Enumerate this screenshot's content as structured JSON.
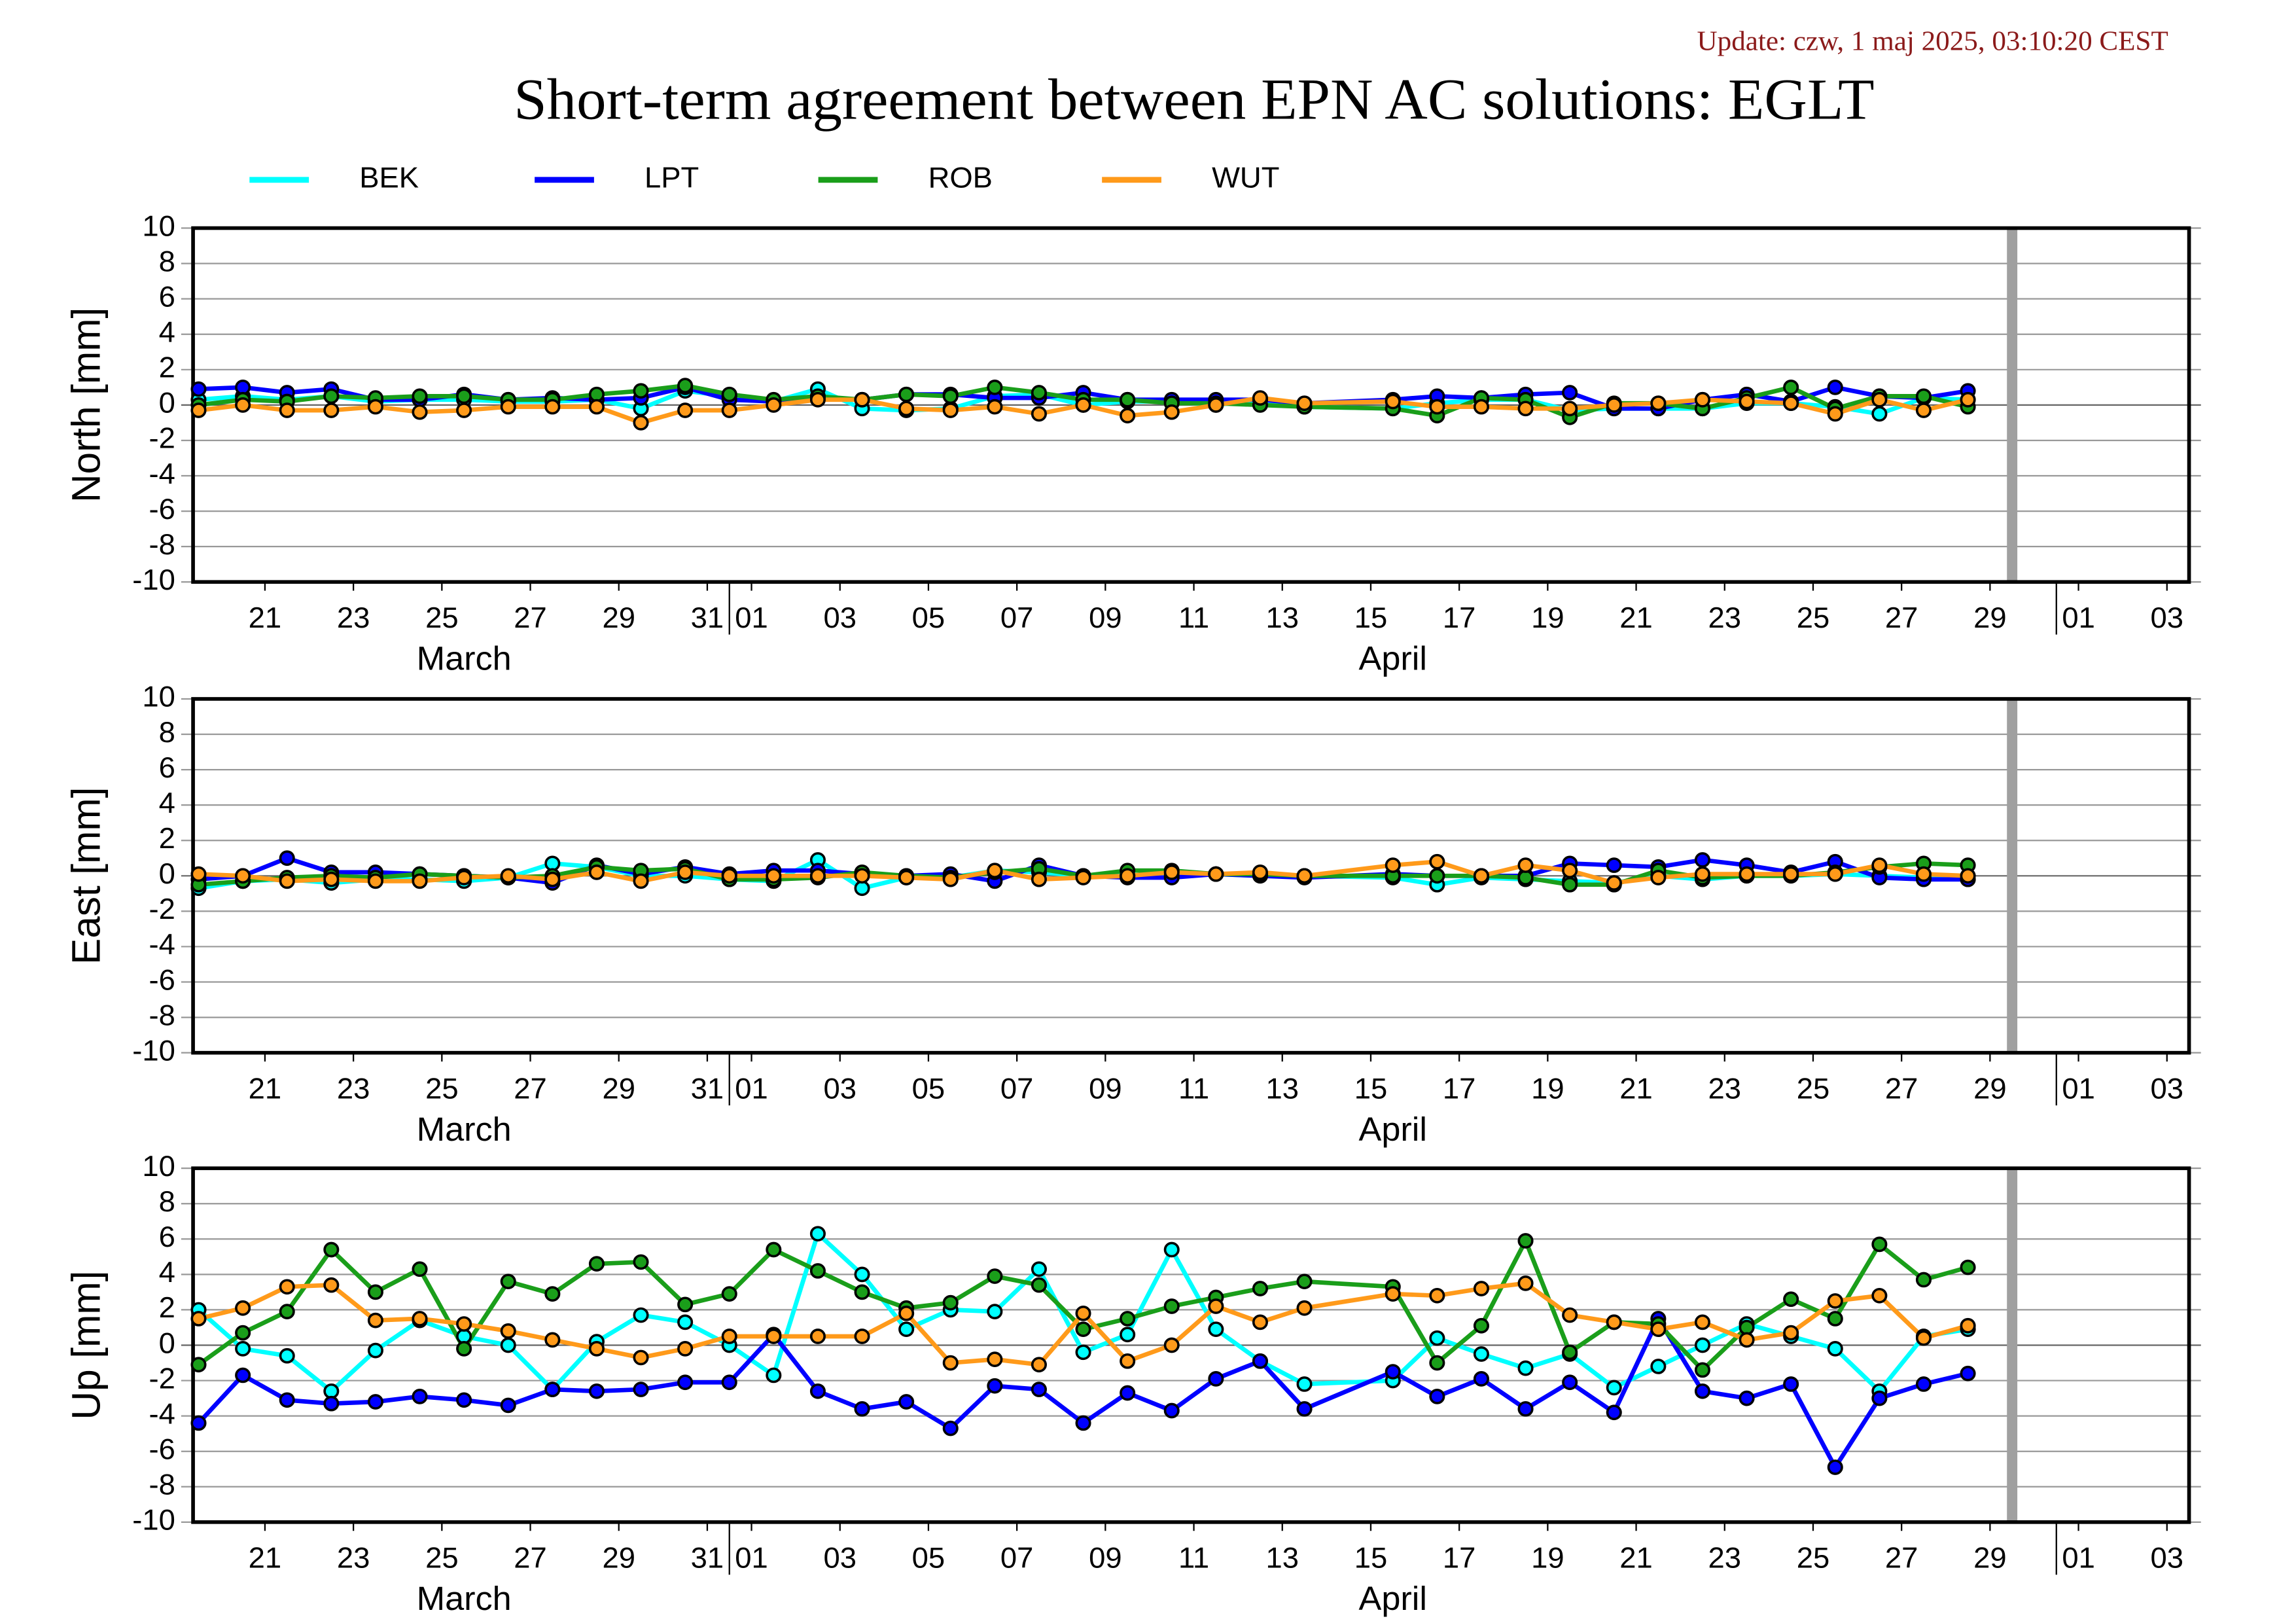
{
  "title": "Short-term agreement between EPN AC solutions: EGLT",
  "update": "Update: czw, 1 maj 2025, 03:10:20 CEST",
  "chart_data": [
    {
      "type": "line",
      "ylabel": "North [mm]",
      "ylim": [
        -10,
        10
      ],
      "yticks": [
        10,
        8,
        6,
        4,
        2,
        0,
        -2,
        -4,
        -6,
        -8,
        -10
      ],
      "grid": true,
      "xlim": [
        "03-19T21",
        "05-04T00"
      ],
      "shade_x": "04-30",
      "shade_color": "#a0a0a0",
      "x": [
        "03-20",
        "03-21",
        "03-22",
        "03-23",
        "03-24",
        "03-25",
        "03-26",
        "03-27",
        "03-28",
        "03-29",
        "03-30",
        "03-31",
        "04-01",
        "04-02",
        "04-03",
        "04-04",
        "04-05",
        "04-06",
        "04-07",
        "04-08",
        "04-09",
        "04-10",
        "04-11",
        "04-12",
        "04-13",
        "04-14",
        "04-16",
        "04-17",
        "04-18",
        "04-19",
        "04-20",
        "04-21",
        "04-22",
        "04-23",
        "04-24",
        "04-25",
        "04-26",
        "04-27",
        "04-28",
        "04-29"
      ],
      "xticks": [
        {
          "value": "03-21T12",
          "label": "21"
        },
        {
          "value": "03-23T12",
          "label": "23"
        },
        {
          "value": "03-25T12",
          "label": "25"
        },
        {
          "value": "03-27T12",
          "label": "27"
        },
        {
          "value": "03-29T12",
          "label": "29"
        },
        {
          "value": "03-31T12",
          "label": "31"
        },
        {
          "value": "04-01T12",
          "label": "01"
        },
        {
          "value": "04-03T12",
          "label": "03"
        },
        {
          "value": "04-05T12",
          "label": "05"
        },
        {
          "value": "04-07T12",
          "label": "07"
        },
        {
          "value": "04-09T12",
          "label": "09"
        },
        {
          "value": "04-11T12",
          "label": "11"
        },
        {
          "value": "04-13T12",
          "label": "13"
        },
        {
          "value": "04-15T12",
          "label": "15"
        },
        {
          "value": "04-17T12",
          "label": "17"
        },
        {
          "value": "04-19T12",
          "label": "19"
        },
        {
          "value": "04-21T12",
          "label": "21"
        },
        {
          "value": "04-23T12",
          "label": "23"
        },
        {
          "value": "04-25T12",
          "label": "25"
        },
        {
          "value": "04-27T12",
          "label": "27"
        },
        {
          "value": "04-29T12",
          "label": "29"
        },
        {
          "value": "05-01T12",
          "label": "01"
        },
        {
          "value": "05-03T12",
          "label": "03"
        }
      ],
      "month_ticks": [
        "04-01",
        "05-01"
      ],
      "month_labels": [
        {
          "value": "03-26",
          "label": "March"
        },
        {
          "value": "04-16",
          "label": "April"
        }
      ],
      "series": [
        {
          "name": "BEK",
          "color": "#00ffff",
          "values": [
            0.3,
            0.5,
            0.3,
            0.5,
            0.2,
            0.3,
            0.3,
            0.2,
            0.2,
            0.3,
            -0.2,
            0.8,
            0.5,
            0.2,
            0.9,
            -0.2,
            -0.3,
            -0.2,
            0.5,
            0.6,
            0,
            0.2,
            0.2,
            0,
            0.3,
            -0.1,
            -0.2,
            0.1,
            0.3,
            0.3,
            -0.3,
            -0.2,
            -0.2,
            -0.2,
            0.1,
            0.1,
            -0.1,
            -0.5,
            0.4,
            0.3
          ]
        },
        {
          "name": "LPT",
          "color": "#0000ff",
          "values": [
            0.9,
            1.0,
            0.7,
            0.9,
            0.3,
            0.3,
            0.6,
            0.3,
            0.4,
            0.3,
            0.4,
            1.0,
            0.3,
            0.2,
            0.4,
            0.3,
            0.6,
            0.6,
            0.4,
            0.4,
            0.7,
            0.3,
            0.3,
            0.3,
            0.3,
            0.1,
            0.3,
            0.5,
            0.4,
            0.6,
            0.7,
            -0.2,
            -0.2,
            0.3,
            0.6,
            0.2,
            1.0,
            0.5,
            0.4,
            0.8
          ]
        },
        {
          "name": "ROB",
          "color": "#1a9e1a",
          "values": [
            0,
            0.3,
            0.2,
            0.5,
            0.4,
            0.5,
            0.5,
            0.3,
            0.3,
            0.6,
            0.8,
            1.1,
            0.6,
            0.3,
            0.5,
            0.3,
            0.6,
            0.5,
            1.0,
            0.7,
            0.3,
            0.3,
            0.1,
            0.1,
            0,
            -0.1,
            -0.2,
            -0.6,
            0.4,
            0.3,
            -0.7,
            0.1,
            0.1,
            -0.2,
            0.4,
            1.0,
            -0.2,
            0.5,
            0.5,
            -0.1
          ]
        },
        {
          "name": "WUT",
          "color": "#ff9a1a",
          "values": [
            -0.3,
            0,
            -0.3,
            -0.3,
            -0.1,
            -0.4,
            -0.3,
            -0.1,
            -0.1,
            -0.1,
            -1.0,
            -0.3,
            -0.3,
            0,
            0.3,
            0.3,
            -0.2,
            -0.3,
            -0.1,
            -0.5,
            0,
            -0.6,
            -0.4,
            0,
            0.4,
            0.1,
            0.2,
            -0.1,
            -0.1,
            -0.2,
            -0.2,
            0,
            0.1,
            0.3,
            0.2,
            0.1,
            -0.5,
            0.3,
            -0.3,
            0.3
          ]
        }
      ]
    },
    {
      "type": "line",
      "ylabel": "East [mm]",
      "ylim": [
        -10,
        10
      ],
      "yticks": [
        10,
        8,
        6,
        4,
        2,
        0,
        -2,
        -4,
        -6,
        -8,
        -10
      ],
      "grid": true,
      "xlim": [
        "03-19T21",
        "05-04T00"
      ],
      "shade_x": "04-30",
      "shade_color": "#a0a0a0",
      "x": [
        "03-20",
        "03-21",
        "03-22",
        "03-23",
        "03-24",
        "03-25",
        "03-26",
        "03-27",
        "03-28",
        "03-29",
        "03-30",
        "03-31",
        "04-01",
        "04-02",
        "04-03",
        "04-04",
        "04-05",
        "04-06",
        "04-07",
        "04-08",
        "04-09",
        "04-10",
        "04-11",
        "04-12",
        "04-13",
        "04-14",
        "04-16",
        "04-17",
        "04-18",
        "04-19",
        "04-20",
        "04-21",
        "04-22",
        "04-23",
        "04-24",
        "04-25",
        "04-26",
        "04-27",
        "04-28",
        "04-29"
      ],
      "xticks": [
        {
          "value": "03-21T12",
          "label": "21"
        },
        {
          "value": "03-23T12",
          "label": "23"
        },
        {
          "value": "03-25T12",
          "label": "25"
        },
        {
          "value": "03-27T12",
          "label": "27"
        },
        {
          "value": "03-29T12",
          "label": "29"
        },
        {
          "value": "03-31T12",
          "label": "31"
        },
        {
          "value": "04-01T12",
          "label": "01"
        },
        {
          "value": "04-03T12",
          "label": "03"
        },
        {
          "value": "04-05T12",
          "label": "05"
        },
        {
          "value": "04-07T12",
          "label": "07"
        },
        {
          "value": "04-09T12",
          "label": "09"
        },
        {
          "value": "04-11T12",
          "label": "11"
        },
        {
          "value": "04-13T12",
          "label": "13"
        },
        {
          "value": "04-15T12",
          "label": "15"
        },
        {
          "value": "04-17T12",
          "label": "17"
        },
        {
          "value": "04-19T12",
          "label": "19"
        },
        {
          "value": "04-21T12",
          "label": "21"
        },
        {
          "value": "04-23T12",
          "label": "23"
        },
        {
          "value": "04-25T12",
          "label": "25"
        },
        {
          "value": "04-27T12",
          "label": "27"
        },
        {
          "value": "04-29T12",
          "label": "29"
        },
        {
          "value": "05-01T12",
          "label": "01"
        },
        {
          "value": "05-03T12",
          "label": "03"
        }
      ],
      "month_ticks": [
        "04-01",
        "05-01"
      ],
      "month_labels": [
        {
          "value": "03-26",
          "label": "March"
        },
        {
          "value": "04-16",
          "label": "April"
        }
      ],
      "series": [
        {
          "name": "BEK",
          "color": "#00ffff",
          "values": [
            -0.7,
            -0.3,
            -0.2,
            -0.4,
            -0.2,
            -0.2,
            -0.3,
            -0.1,
            0.7,
            0.5,
            0,
            0,
            -0.2,
            -0.3,
            0.9,
            -0.7,
            -0.1,
            -0.1,
            0.3,
            0.2,
            0,
            0,
            0,
            0.1,
            0,
            0,
            -0.1,
            -0.5,
            -0.1,
            -0.2,
            -0.3,
            -0.4,
            0,
            -0.2,
            0,
            0,
            0.1,
            0,
            -0.1,
            -0.2
          ]
        },
        {
          "name": "LPT",
          "color": "#0000ff",
          "values": [
            -0.2,
            0,
            1.0,
            0.2,
            0.2,
            0.1,
            0,
            -0.1,
            -0.4,
            0.6,
            0.1,
            0.5,
            0.1,
            0.3,
            0.3,
            0.1,
            0,
            0.1,
            -0.3,
            0.6,
            0,
            -0.1,
            -0.1,
            0.1,
            0,
            -0.1,
            0.1,
            0,
            0,
            0,
            0.7,
            0.6,
            0.5,
            0.9,
            0.6,
            0.2,
            0.8,
            -0.1,
            -0.2,
            -0.2
          ]
        },
        {
          "name": "ROB",
          "color": "#1a9e1a",
          "values": [
            -0.5,
            -0.3,
            -0.1,
            0,
            -0.1,
            0.1,
            0,
            -0.1,
            0,
            0.5,
            0.3,
            0.4,
            -0.2,
            -0.2,
            -0.1,
            0.2,
            0,
            -0.1,
            0.2,
            0.4,
            0,
            0.3,
            0.3,
            0.1,
            0.1,
            0,
            0,
            0,
            0,
            -0.1,
            -0.5,
            -0.5,
            0.3,
            -0.1,
            0,
            0,
            0.2,
            0.5,
            0.7,
            0.6
          ]
        },
        {
          "name": "WUT",
          "color": "#ff9a1a",
          "values": [
            0.1,
            0,
            -0.3,
            -0.2,
            -0.3,
            -0.3,
            -0.1,
            0,
            -0.2,
            0.2,
            -0.3,
            0.2,
            0,
            0,
            0,
            0,
            -0.1,
            -0.2,
            0.3,
            -0.2,
            -0.1,
            0,
            0.2,
            0.1,
            0.2,
            0,
            0.6,
            0.8,
            0,
            0.6,
            0.3,
            -0.4,
            -0.1,
            0.1,
            0.1,
            0.1,
            0.1,
            0.6,
            0.1,
            0
          ]
        }
      ]
    },
    {
      "type": "line",
      "ylabel": "Up [mm]",
      "ylim": [
        -10,
        10
      ],
      "yticks": [
        10,
        8,
        6,
        4,
        2,
        0,
        -2,
        -4,
        -6,
        -8,
        -10
      ],
      "grid": true,
      "xlim": [
        "03-19T21",
        "05-04T00"
      ],
      "shade_x": "04-30",
      "shade_color": "#a0a0a0",
      "x": [
        "03-20",
        "03-21",
        "03-22",
        "03-23",
        "03-24",
        "03-25",
        "03-26",
        "03-27",
        "03-28",
        "03-29",
        "03-30",
        "03-31",
        "04-01",
        "04-02",
        "04-03",
        "04-04",
        "04-05",
        "04-06",
        "04-07",
        "04-08",
        "04-09",
        "04-10",
        "04-11",
        "04-12",
        "04-13",
        "04-14",
        "04-16",
        "04-17",
        "04-18",
        "04-19",
        "04-20",
        "04-21",
        "04-22",
        "04-23",
        "04-24",
        "04-25",
        "04-26",
        "04-27",
        "04-28",
        "04-29"
      ],
      "xticks": [
        {
          "value": "03-21T12",
          "label": "21"
        },
        {
          "value": "03-23T12",
          "label": "23"
        },
        {
          "value": "03-25T12",
          "label": "25"
        },
        {
          "value": "03-27T12",
          "label": "27"
        },
        {
          "value": "03-29T12",
          "label": "29"
        },
        {
          "value": "03-31T12",
          "label": "31"
        },
        {
          "value": "04-01T12",
          "label": "01"
        },
        {
          "value": "04-03T12",
          "label": "03"
        },
        {
          "value": "04-05T12",
          "label": "05"
        },
        {
          "value": "04-07T12",
          "label": "07"
        },
        {
          "value": "04-09T12",
          "label": "09"
        },
        {
          "value": "04-11T12",
          "label": "11"
        },
        {
          "value": "04-13T12",
          "label": "13"
        },
        {
          "value": "04-15T12",
          "label": "15"
        },
        {
          "value": "04-17T12",
          "label": "17"
        },
        {
          "value": "04-19T12",
          "label": "19"
        },
        {
          "value": "04-21T12",
          "label": "21"
        },
        {
          "value": "04-23T12",
          "label": "23"
        },
        {
          "value": "04-25T12",
          "label": "25"
        },
        {
          "value": "04-27T12",
          "label": "27"
        },
        {
          "value": "04-29T12",
          "label": "29"
        },
        {
          "value": "05-01T12",
          "label": "01"
        },
        {
          "value": "05-03T12",
          "label": "03"
        }
      ],
      "month_ticks": [
        "04-01",
        "05-01"
      ],
      "month_labels": [
        {
          "value": "03-26",
          "label": "March"
        },
        {
          "value": "04-16",
          "label": "April"
        }
      ],
      "series": [
        {
          "name": "BEK",
          "color": "#00ffff",
          "values": [
            2.0,
            -0.2,
            -0.6,
            -2.6,
            -0.3,
            1.4,
            0.5,
            0,
            -2.5,
            0.2,
            1.7,
            1.3,
            0,
            -1.7,
            6.3,
            4.0,
            0.9,
            2.0,
            1.9,
            4.3,
            -0.4,
            0.6,
            5.4,
            0.9,
            -0.9,
            -2.2,
            -2.0,
            0.4,
            -0.5,
            -1.3,
            -0.5,
            -2.4,
            -1.2,
            0,
            1.2,
            0.5,
            -0.2,
            -2.6,
            0.5,
            0.9
          ]
        },
        {
          "name": "LPT",
          "color": "#0000ff",
          "values": [
            -4.4,
            -1.7,
            -3.1,
            -3.3,
            -3.2,
            -2.9,
            -3.1,
            -3.4,
            -2.5,
            -2.6,
            -2.5,
            -2.1,
            -2.1,
            0.6,
            -2.6,
            -3.6,
            -3.2,
            -4.7,
            -2.3,
            -2.5,
            -4.4,
            -2.7,
            -3.7,
            -1.9,
            -0.9,
            -3.6,
            -1.5,
            -2.9,
            -1.9,
            -3.6,
            -2.1,
            -3.8,
            1.5,
            -2.6,
            -3.0,
            -2.2,
            -6.9,
            -3.0,
            -2.2,
            -1.6
          ]
        },
        {
          "name": "ROB",
          "color": "#1a9e1a",
          "values": [
            -1.1,
            0.7,
            1.9,
            5.4,
            3.0,
            4.3,
            -0.2,
            3.6,
            2.9,
            4.6,
            4.7,
            2.3,
            2.9,
            5.4,
            4.2,
            3.0,
            2.1,
            2.4,
            3.9,
            3.4,
            0.9,
            1.5,
            2.2,
            2.7,
            3.2,
            3.6,
            3.3,
            -1.0,
            1.1,
            5.9,
            -0.4,
            1.3,
            1.2,
            -1.4,
            1.0,
            2.6,
            1.5,
            5.7,
            3.7,
            4.4
          ]
        },
        {
          "name": "WUT",
          "color": "#ff9a1a",
          "values": [
            1.5,
            2.1,
            3.3,
            3.4,
            1.4,
            1.5,
            1.2,
            0.8,
            0.3,
            -0.2,
            -0.7,
            -0.2,
            0.5,
            0.5,
            0.5,
            0.5,
            1.8,
            -1.0,
            -0.8,
            -1.1,
            1.8,
            -0.9,
            0,
            2.2,
            1.3,
            2.1,
            2.9,
            2.8,
            3.2,
            3.5,
            1.7,
            1.3,
            0.9,
            1.3,
            0.3,
            0.7,
            2.5,
            2.8,
            0.4,
            1.1
          ]
        }
      ]
    }
  ]
}
